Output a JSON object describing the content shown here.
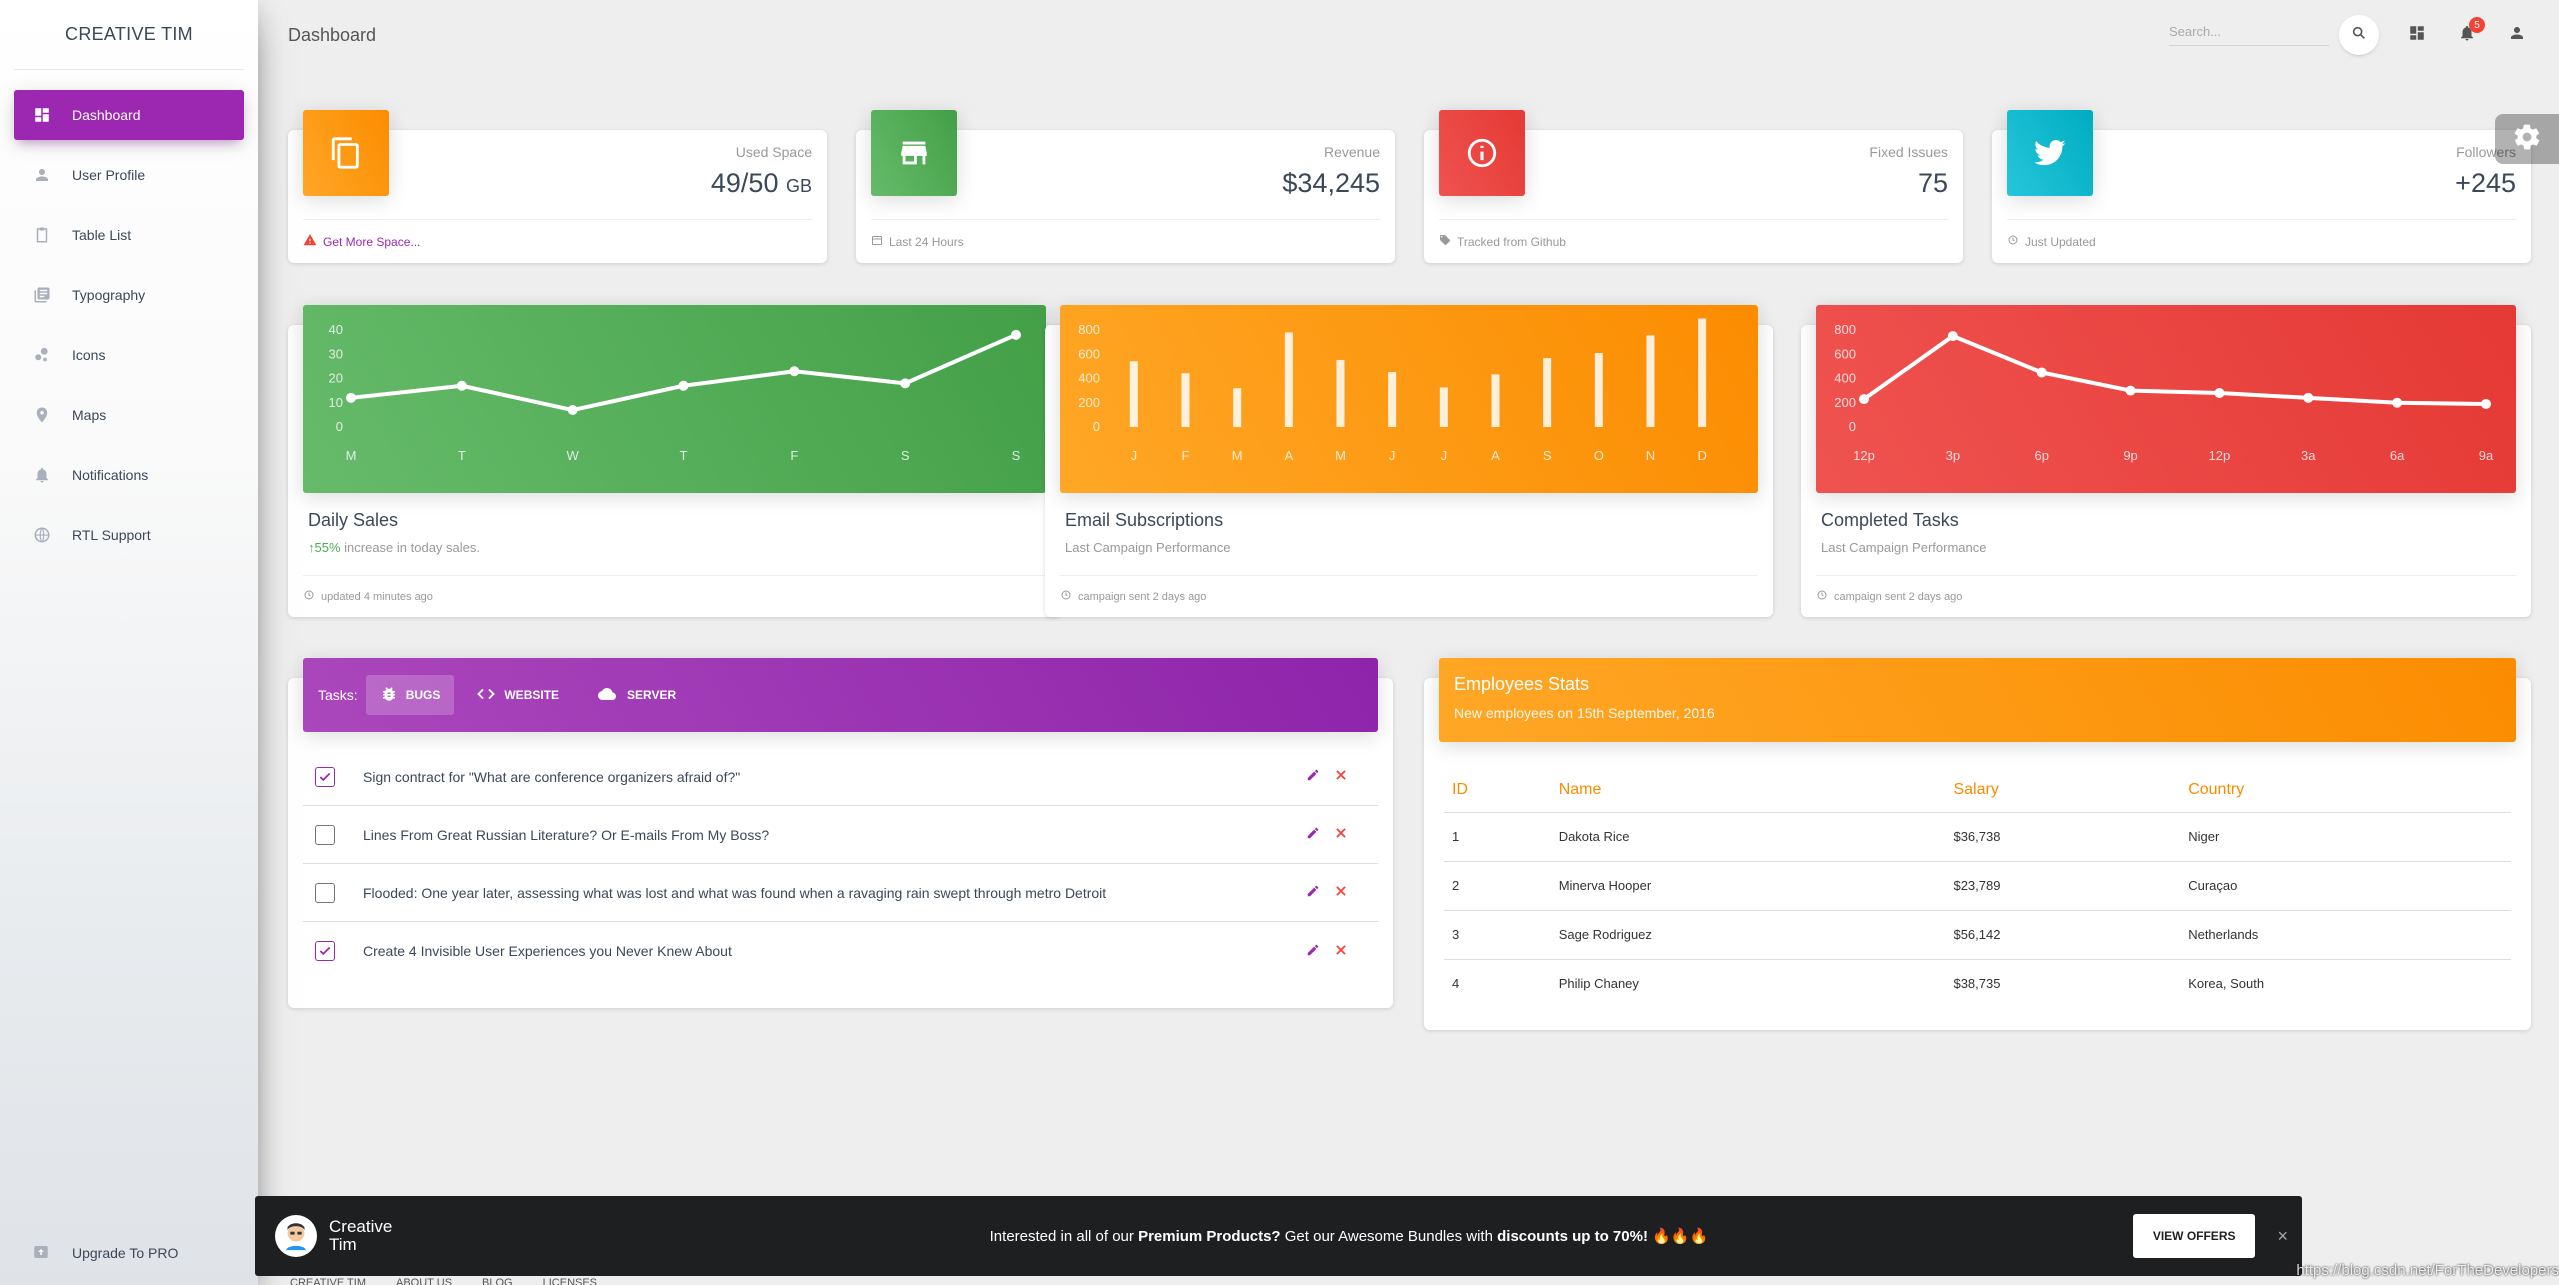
{
  "sidebar": {
    "brand": "CREATIVE TIM",
    "items": [
      {
        "label": "Dashboard"
      },
      {
        "label": "User Profile"
      },
      {
        "label": "Table List"
      },
      {
        "label": "Typography"
      },
      {
        "label": "Icons"
      },
      {
        "label": "Maps"
      },
      {
        "label": "Notifications"
      },
      {
        "label": "RTL Support"
      }
    ],
    "upgrade": "Upgrade To PRO"
  },
  "topbar": {
    "title": "Dashboard",
    "search_placeholder": "Search...",
    "notification_count": "5"
  },
  "stats": [
    {
      "category": "Used Space",
      "value": "49/50",
      "unit": "GB",
      "footer": "Get More Space...",
      "color": "#ff9800"
    },
    {
      "category": "Revenue",
      "value": "$34,245",
      "footer": "Last 24 Hours",
      "color": "#4caf50"
    },
    {
      "category": "Fixed Issues",
      "value": "75",
      "footer": "Tracked from Github",
      "color": "#f44336"
    },
    {
      "category": "Followers",
      "value": "+245",
      "footer": "Just Updated",
      "color": "#00bcd4"
    }
  ],
  "charts": {
    "daily_sales": {
      "title": "Daily Sales",
      "sub_pct": "55%",
      "sub_text": " increase in today sales.",
      "footer": "updated 4 minutes ago"
    },
    "email": {
      "title": "Email Subscriptions",
      "sub": "Last Campaign Performance",
      "footer": "campaign sent 2 days ago"
    },
    "tasks": {
      "title": "Completed Tasks",
      "sub": "Last Campaign Performance",
      "footer": "campaign sent 2 days ago"
    }
  },
  "chart_data": [
    {
      "type": "line",
      "categories": [
        "M",
        "T",
        "W",
        "T",
        "F",
        "S",
        "S"
      ],
      "values": [
        12,
        17,
        7,
        17,
        23,
        18,
        38
      ],
      "yticks": [
        "0",
        "10",
        "20",
        "30",
        "40"
      ],
      "ylim": [
        0,
        40
      ]
    },
    {
      "type": "bar",
      "categories": [
        "J",
        "F",
        "M",
        "A",
        "M",
        "J",
        "J",
        "A",
        "S",
        "O",
        "N",
        "D"
      ],
      "values": [
        542,
        443,
        320,
        780,
        553,
        453,
        326,
        434,
        568,
        610,
        756,
        895
      ],
      "yticks": [
        "0",
        "200",
        "400",
        "600",
        "800"
      ],
      "ylim": [
        0,
        800
      ]
    },
    {
      "type": "line",
      "categories": [
        "12p",
        "3p",
        "6p",
        "9p",
        "12p",
        "3a",
        "6a",
        "9a"
      ],
      "values": [
        230,
        750,
        450,
        300,
        280,
        240,
        200,
        190
      ],
      "yticks": [
        "0",
        "200",
        "400",
        "600",
        "800"
      ],
      "ylim": [
        0,
        800
      ]
    }
  ],
  "tasks": {
    "label": "Tasks:",
    "tabs": [
      "BUGS",
      "WEBSITE",
      "SERVER"
    ],
    "items": [
      {
        "text": "Sign contract for \"What are conference organizers afraid of?\"",
        "checked": true
      },
      {
        "text": "Lines From Great Russian Literature? Or E-mails From My Boss?",
        "checked": false
      },
      {
        "text": "Flooded: One year later, assessing what was lost and what was found when a ravaging rain swept through metro Detroit",
        "checked": false
      },
      {
        "text": "Create 4 Invisible User Experiences you Never Knew About",
        "checked": true
      }
    ]
  },
  "employees": {
    "title": "Employees Stats",
    "subtitle": "New employees on 15th September, 2016",
    "columns": [
      "ID",
      "Name",
      "Salary",
      "Country"
    ],
    "rows": [
      [
        "1",
        "Dakota Rice",
        "$36,738",
        "Niger"
      ],
      [
        "2",
        "Minerva Hooper",
        "$23,789",
        "Curaçao"
      ],
      [
        "3",
        "Sage Rodriguez",
        "$56,142",
        "Netherlands"
      ],
      [
        "4",
        "Philip Chaney",
        "$38,735",
        "Korea, South"
      ]
    ]
  },
  "banner": {
    "brand": "Creative Tim",
    "msg_pre": "Interested in all of our ",
    "msg_b1": "Premium Products?",
    "msg_mid": " Get our Awesome Bundles with ",
    "msg_b2": "discounts up to 70%!",
    "msg_post": " 🔥🔥🔥",
    "button": "VIEW OFFERS",
    "close": "×"
  },
  "footer": {
    "links": [
      "CREATIVE TIM",
      "ABOUT US",
      "BLOG",
      "LICENSES"
    ]
  },
  "watermark": "https://blog.csdn.net/ForTheDevelopers"
}
